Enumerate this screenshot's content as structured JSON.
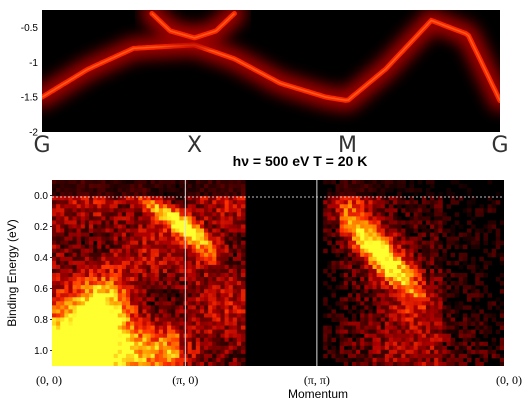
{
  "chart_data": [
    {
      "type": "heatmap",
      "panel": "calculated band dispersion",
      "colormap": [
        "#000000",
        "#5a0000",
        "#b00000",
        "#ff2a00",
        "#ff7a2a",
        "#ffd0a0"
      ],
      "ylim": [
        -2,
        -0.25
      ],
      "y_ticks": [
        "-0.5",
        "-1",
        "-1.5",
        "-2"
      ],
      "x_ticks": [
        "G",
        "X",
        "M",
        "G"
      ],
      "bands": [
        {
          "name": "",
          "k": [
            0,
            0.1,
            0.2,
            0.333,
            0.42,
            0.52,
            0.62,
            0.667,
            0.75,
            0.85,
            0.93,
            1.0
          ],
          "E": [
            -1.5,
            -1.1,
            -0.8,
            -0.75,
            -0.95,
            -1.3,
            -1.5,
            -1.55,
            -1.1,
            -0.4,
            -0.6,
            -1.55
          ]
        },
        {
          "name": "",
          "k": [
            0.24,
            0.28,
            0.333,
            0.38,
            0.42
          ],
          "E": [
            -0.3,
            -0.55,
            -0.65,
            -0.55,
            -0.3
          ]
        }
      ]
    },
    {
      "type": "heatmap",
      "panel": "ARPES intensity map",
      "title": "hν = 500 eV T = 20 K",
      "colormap": [
        "#000000",
        "#5a0000",
        "#b00000",
        "#ff3000",
        "#ff9a00",
        "#ffff30"
      ],
      "ylabel": "Binding Energy (eV)",
      "xlabel": "Momentum",
      "ylim": [
        -0.1,
        1.1
      ],
      "y_ticks": [
        "0.0",
        "0.2",
        "0.4",
        "0.6",
        "0.8",
        "1.0"
      ],
      "x_ticks": [
        "(0, 0)",
        "(π, 0)",
        "(π, π)",
        "(0, 0)"
      ],
      "grid": false,
      "features": [
        {
          "k": [
            0.02,
            0.1,
            0.2
          ],
          "E": [
            1.05,
            0.75,
            0.55
          ]
        },
        {
          "k": [
            0.25,
            0.3,
            0.34
          ],
          "E": [
            0.35,
            0.15,
            0.0
          ]
        },
        {
          "k": [
            0.65,
            0.72,
            0.8
          ],
          "E": [
            0.1,
            0.35,
            0.65
          ]
        }
      ]
    }
  ]
}
